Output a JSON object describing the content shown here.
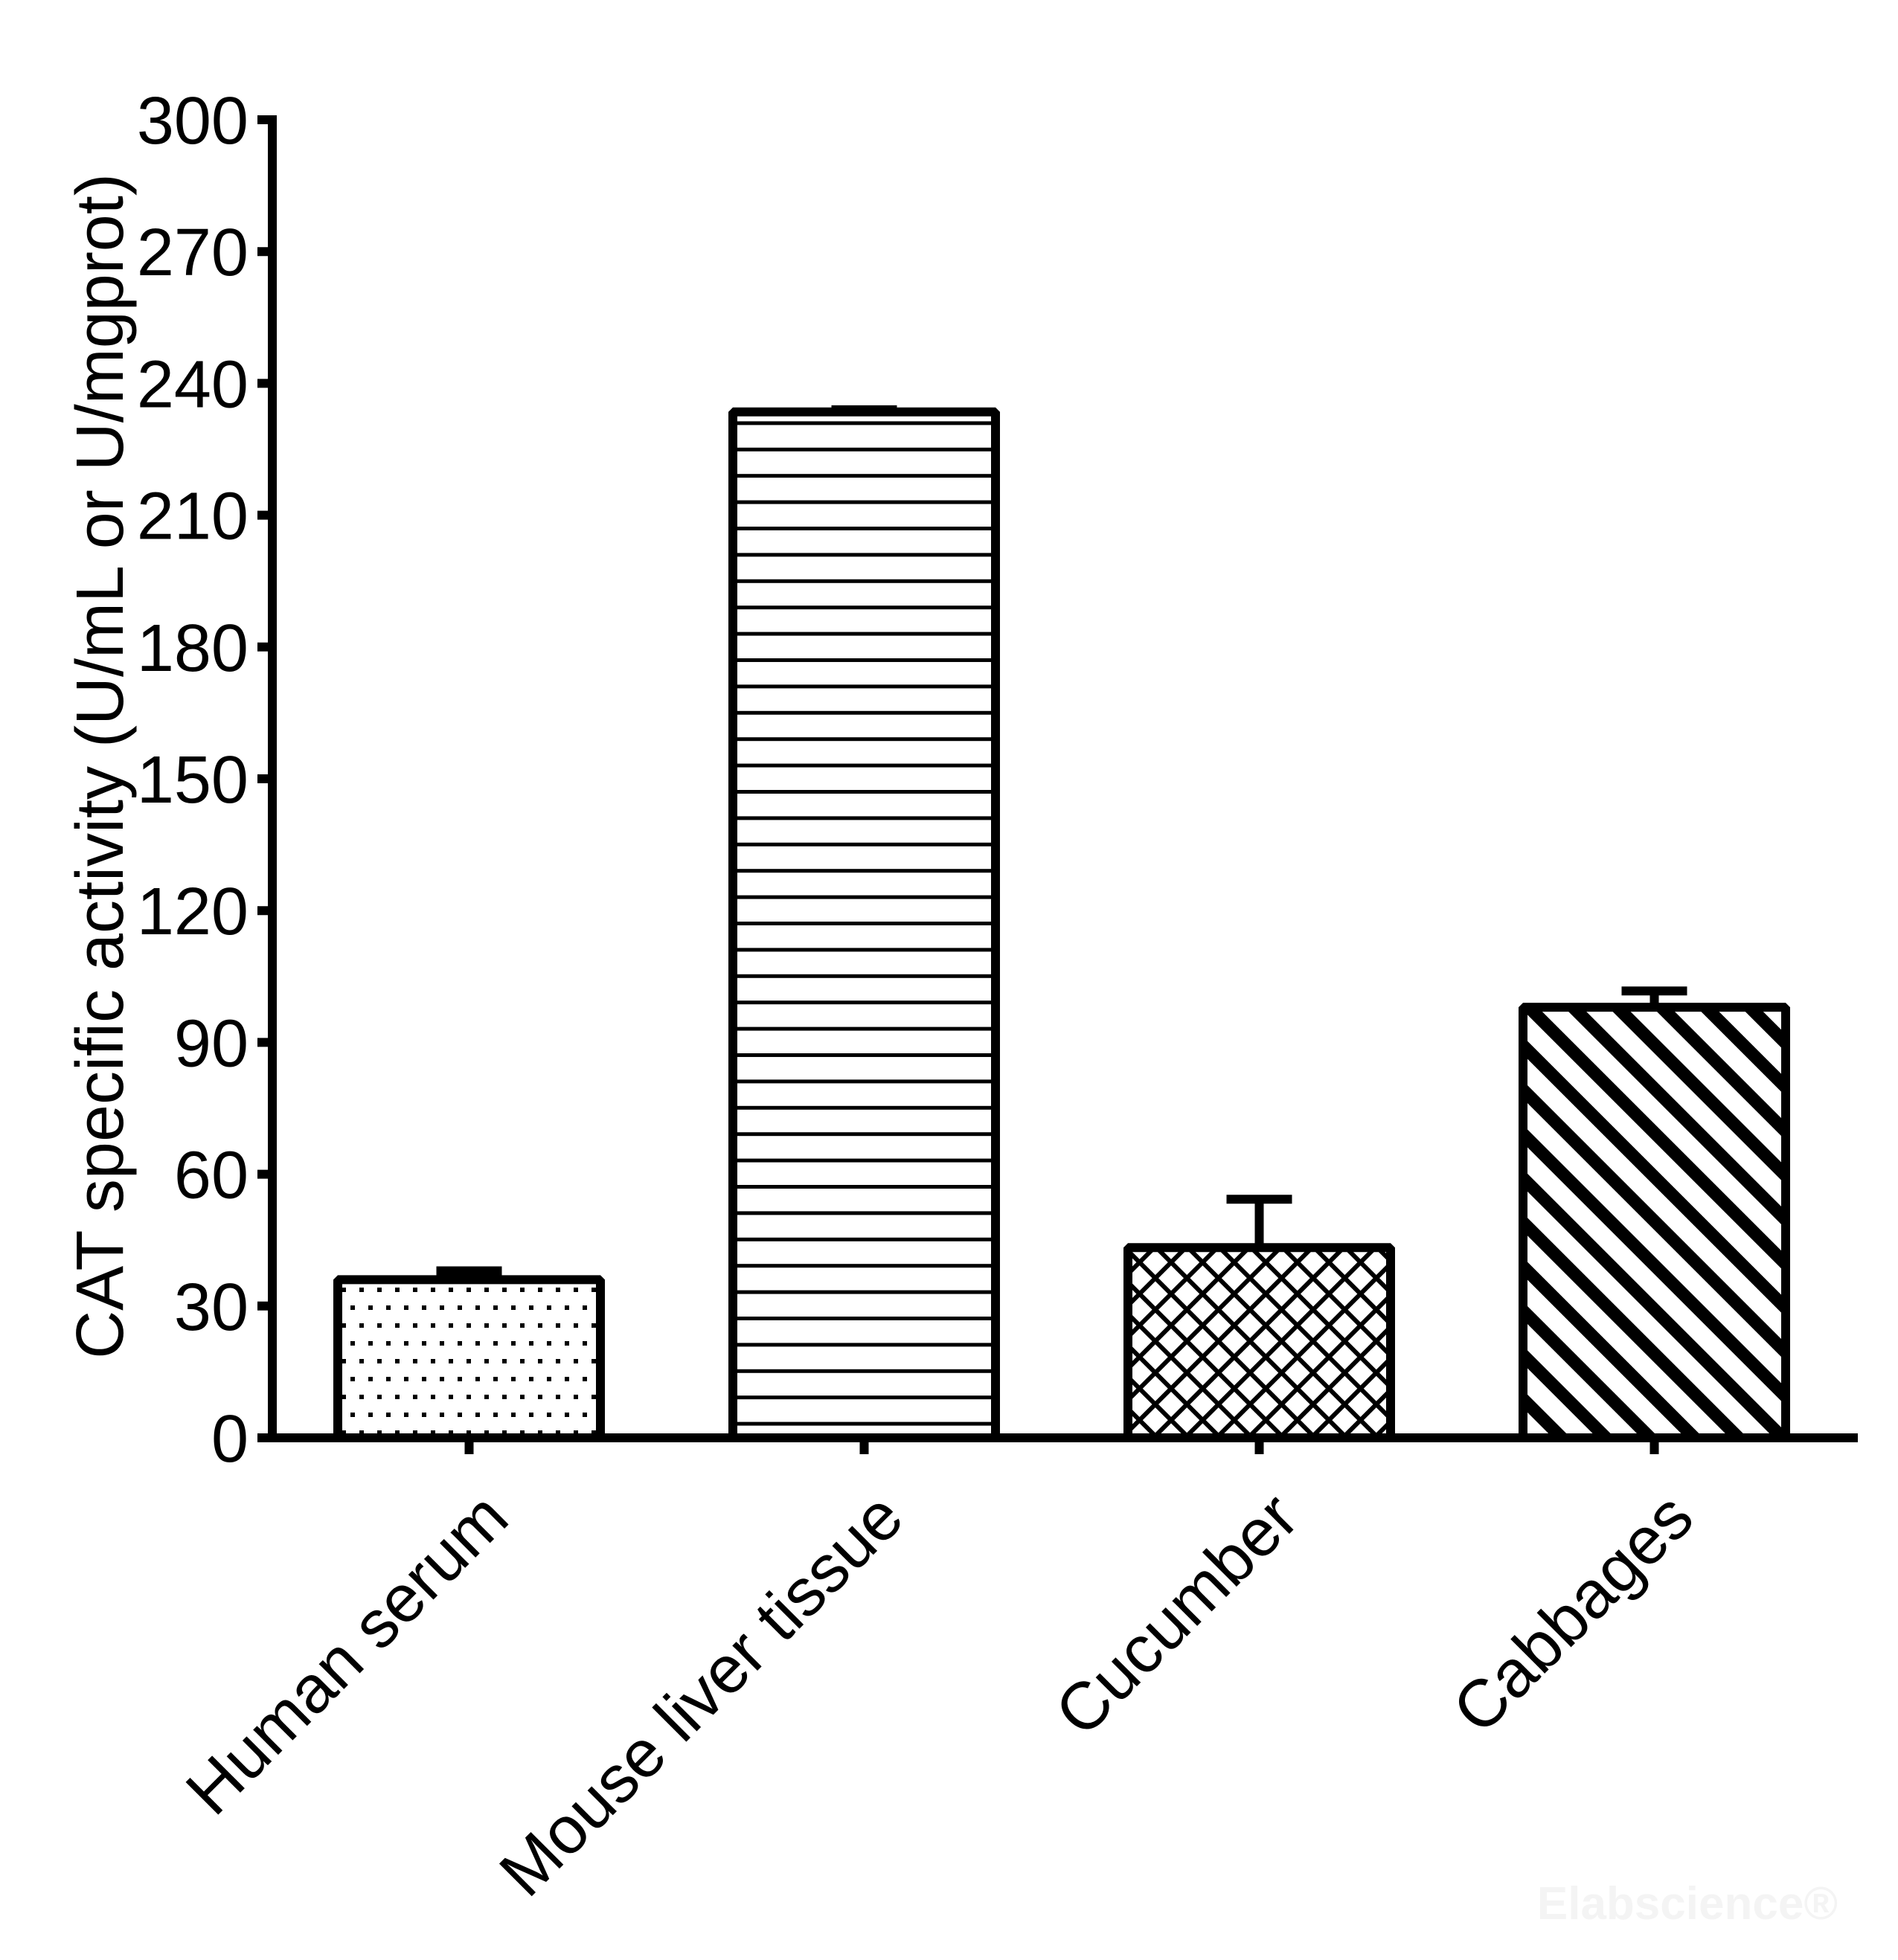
{
  "chart_data": {
    "type": "bar",
    "title": "",
    "xlabel": "",
    "ylabel": "CAT specific activity (U/mL or U/mgprot)",
    "ylim": [
      0,
      300
    ],
    "yticks": [
      0,
      30,
      60,
      90,
      120,
      150,
      180,
      210,
      240,
      270,
      300
    ],
    "grid": false,
    "legend": null,
    "categories": [
      "Human serum",
      "Mouse liver tissue",
      "Cucumber",
      "Cabbages"
    ],
    "values": [
      36,
      233.5,
      43.3,
      98
    ],
    "errors": [
      2,
      0.5,
      11,
      3.7
    ],
    "patterns": [
      "dots",
      "horizontal-lines",
      "diagonal-brick",
      "diagonal-stripes"
    ],
    "xtick_rotation": -45
  },
  "watermark": "Elabscience®",
  "colors": {
    "ink": "#000000",
    "background": "#ffffff",
    "watermark": "#f4f4f4"
  }
}
